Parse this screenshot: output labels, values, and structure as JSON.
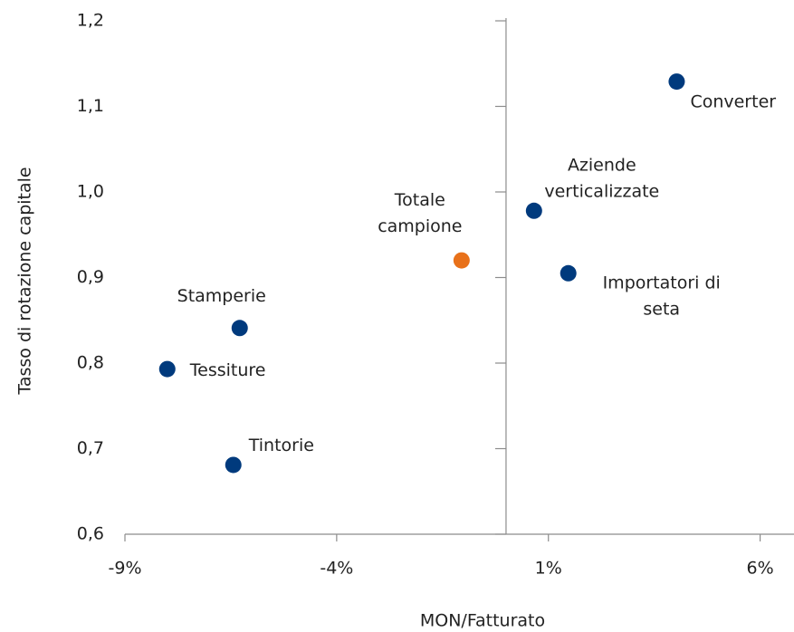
{
  "chart_data": {
    "type": "scatter",
    "x_label": "MON/Fatturato",
    "y_label": "Tasso di rotazione capitale",
    "x": [
      4.03,
      0.66,
      1.47,
      -1.05,
      -6.29,
      -8.0,
      -6.44
    ],
    "values": [
      1.129,
      0.978,
      0.905,
      0.92,
      0.841,
      0.793,
      0.681
    ],
    "point_labels": [
      [
        "Converter"
      ],
      [
        "Aziende",
        "verticalizzate"
      ],
      [
        "Importatori di",
        "seta"
      ],
      [
        "Totale",
        "campione"
      ],
      [
        "Stamperie"
      ],
      [
        "Tessiture"
      ],
      [
        "Tintorie"
      ]
    ],
    "point_colors": [
      "#003a7d",
      "#003a7d",
      "#003a7d",
      "#e8711a",
      "#003a7d",
      "#003a7d",
      "#003a7d"
    ],
    "xlim": [
      -9,
      6.8
    ],
    "ylim": [
      0.6,
      1.2
    ],
    "xticks": [
      {
        "value": -9,
        "label": "-9%"
      },
      {
        "value": -4,
        "label": "-4%"
      },
      {
        "value": 1,
        "label": "1%"
      },
      {
        "value": 6,
        "label": "6%"
      }
    ],
    "yticks": [
      {
        "value": 0.6,
        "label": "0,6"
      },
      {
        "value": 0.7,
        "label": "0,7"
      },
      {
        "value": 0.8,
        "label": "0,8"
      },
      {
        "value": 0.9,
        "label": "0,9"
      },
      {
        "value": 1.0,
        "label": "1,0"
      },
      {
        "value": 1.1,
        "label": "1,1"
      },
      {
        "value": 1.2,
        "label": "1,2"
      }
    ],
    "y_axis_at_x": 0
  }
}
